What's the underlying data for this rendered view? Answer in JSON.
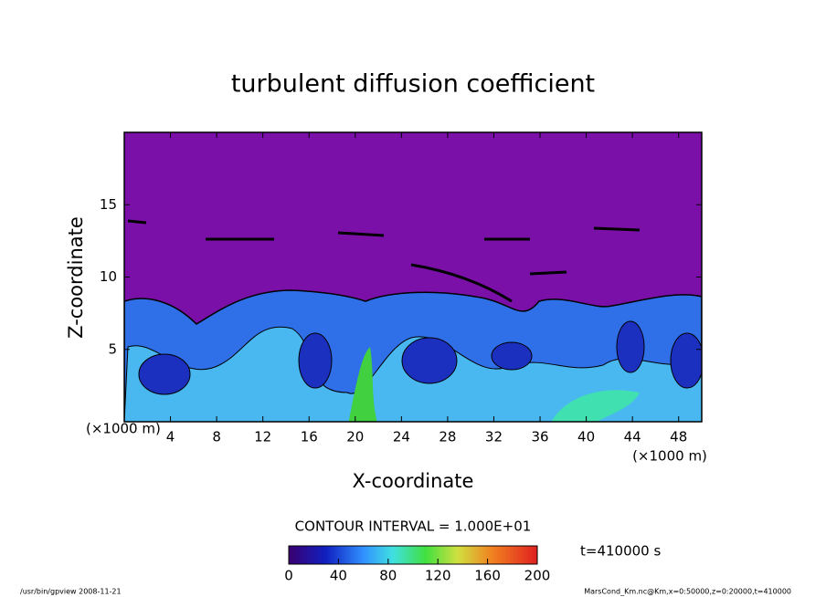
{
  "chart_data": {
    "type": "contour",
    "title": "turbulent diffusion coefficient",
    "xlabel": "X-coordinate",
    "ylabel": "Z-coordinate",
    "x_unit": "(×1000 m)",
    "xlim": [
      0,
      50
    ],
    "xticks": [
      4,
      8,
      12,
      16,
      20,
      24,
      28,
      32,
      36,
      40,
      44,
      48
    ],
    "ylim": [
      0,
      20
    ],
    "yticks": [
      5,
      10,
      15
    ],
    "contour_interval": "CONTOUR INTERVAL = 1.000E+01",
    "colorbar": {
      "lim": [
        0,
        200
      ],
      "ticks": [
        0,
        40,
        80,
        120,
        160,
        200
      ]
    },
    "time_label": "t=410000 s",
    "footer_left": "/usr/bin/gpview  2008-11-21",
    "footer_right": "MarsCond_Km.nc@Km,x=0:50000,z=0:20000,t=410000"
  }
}
